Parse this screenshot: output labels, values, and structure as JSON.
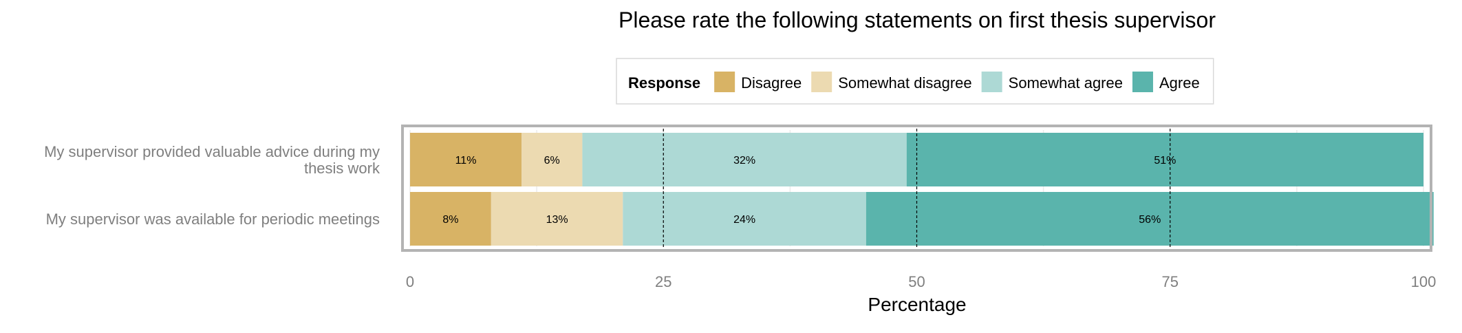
{
  "chart_data": {
    "type": "bar",
    "orientation": "horizontal",
    "stacked": true,
    "title": "Please rate the following statements on first thesis supervisor",
    "xlabel": "Percentage",
    "ylabel": "",
    "xlim": [
      0,
      100
    ],
    "x_ticks": [
      "0",
      "25",
      "50",
      "75",
      "100"
    ],
    "grid": true,
    "reference_lines": [
      25,
      50,
      75
    ],
    "legend": {
      "title": "Response",
      "placement": "top"
    },
    "categories": [
      [
        "My supervisor provided valuable advice during my",
        "thesis work"
      ],
      [
        "My supervisor was available for periodic meetings"
      ]
    ],
    "series": [
      {
        "name": "Disagree",
        "color": "#d8b365",
        "values": [
          11,
          8
        ],
        "labels": [
          "11%",
          "8%"
        ]
      },
      {
        "name": "Somewhat disagree",
        "color": "#ecdab1",
        "values": [
          6,
          13
        ],
        "labels": [
          "6%",
          "13%"
        ]
      },
      {
        "name": "Somewhat agree",
        "color": "#add9d5",
        "values": [
          32,
          24
        ],
        "labels": [
          "32%",
          "24%"
        ]
      },
      {
        "name": "Agree",
        "color": "#5ab4ac",
        "values": [
          51,
          56
        ],
        "labels": [
          "51%",
          "56%"
        ]
      }
    ]
  }
}
